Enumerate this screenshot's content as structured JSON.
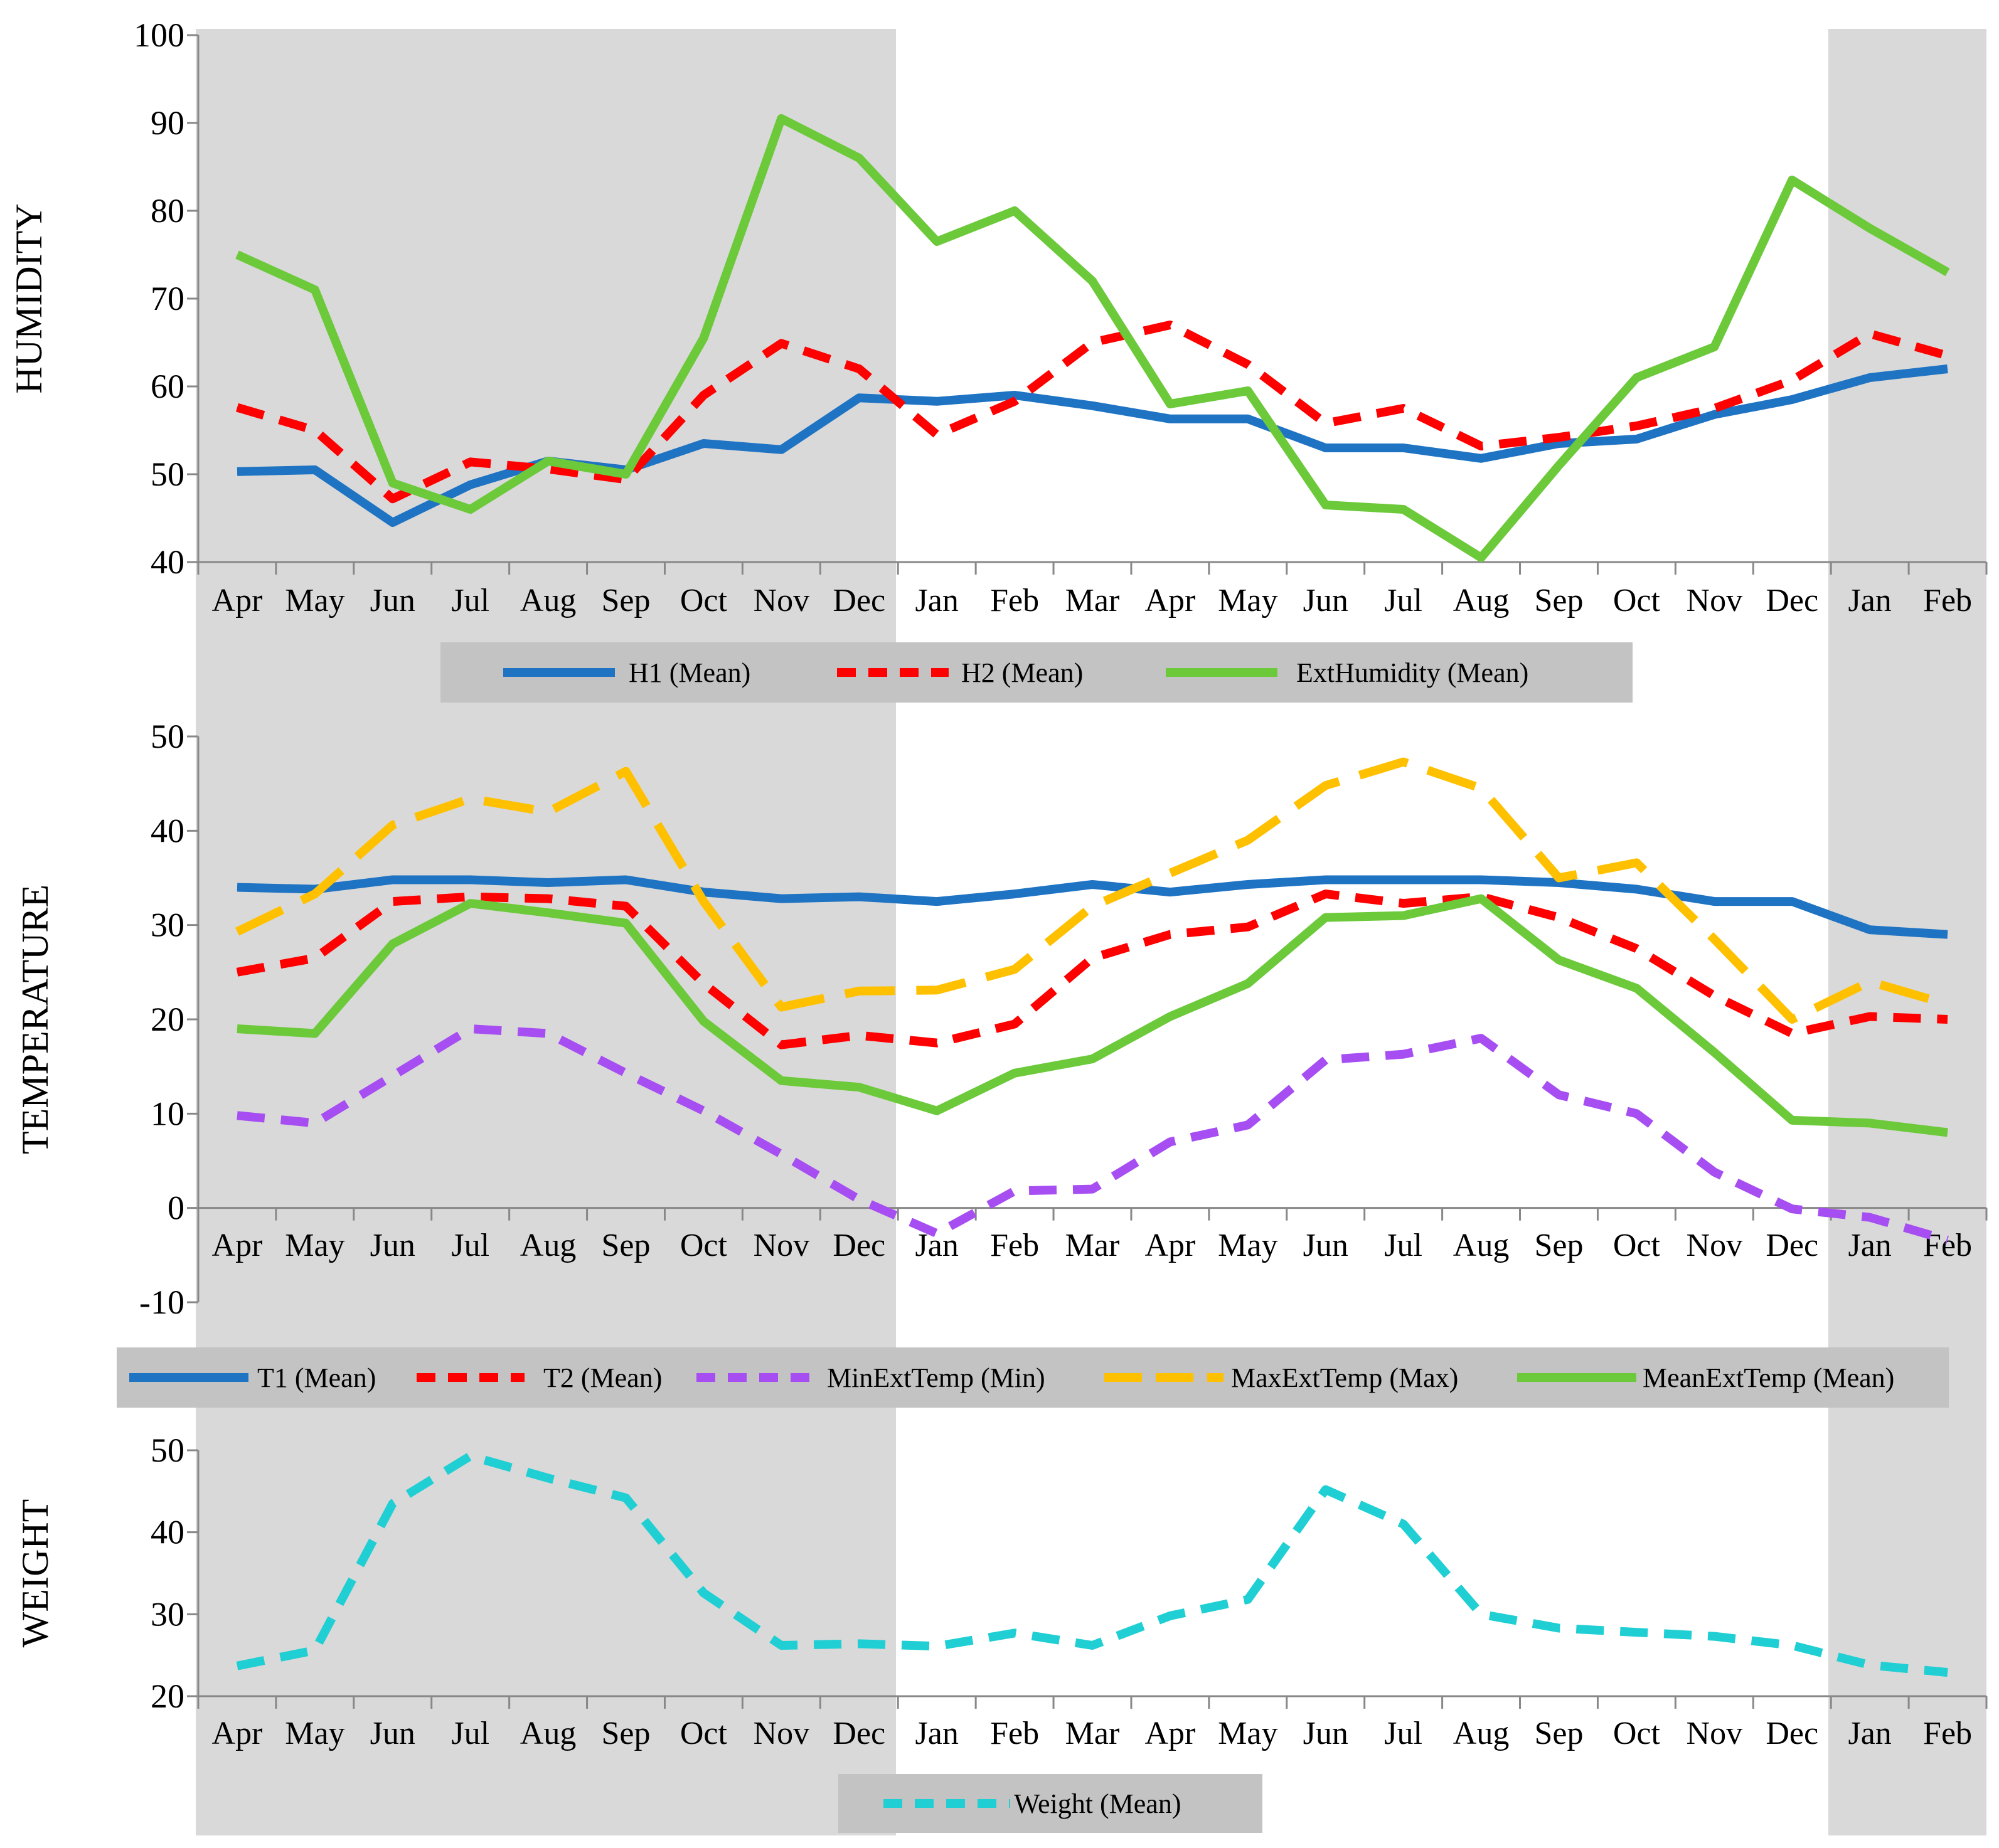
{
  "chart_data": [
    {
      "type": "line",
      "ylabel": "HUMIDITY",
      "ylim": [
        40,
        100
      ],
      "yticks": [
        "100",
        "90",
        "80",
        "70",
        "60",
        "50",
        "40"
      ],
      "categories": [
        "Apr",
        "May",
        "Jun",
        "Jul",
        "Aug",
        "Sep",
        "Oct",
        "Nov",
        "Dec",
        "Jan",
        "Feb",
        "Mar",
        "Apr",
        "May",
        "Jun",
        "Jul",
        "Aug",
        "Sep",
        "Oct",
        "Nov",
        "Dec",
        "Jan",
        "Feb"
      ],
      "series": [
        {
          "name": "H1 (Mean)",
          "color": "#1f73c3",
          "dash": "solid",
          "values": [
            50.3,
            50.5,
            44.5,
            48.8,
            51.5,
            50.5,
            53.5,
            52.8,
            58.7,
            58.3,
            59.0,
            57.8,
            56.3,
            56.3,
            53.0,
            53.0,
            51.8,
            53.5,
            54.0,
            56.8,
            58.5,
            61.0,
            62.0
          ]
        },
        {
          "name": "H2 (Mean)",
          "color": "#ff0000",
          "dash": "dash",
          "values": [
            57.6,
            55.0,
            47.2,
            51.4,
            50.6,
            49.4,
            59.0,
            64.9,
            62.0,
            54.5,
            58.3,
            65.0,
            67.0,
            62.5,
            55.8,
            57.5,
            53.2,
            54.2,
            55.5,
            57.5,
            60.7,
            66.0,
            63.5
          ]
        },
        {
          "name": "ExtHumidity (Mean)",
          "color": "#6cc93a",
          "dash": "solid",
          "values": [
            75.0,
            71.0,
            49.0,
            46.0,
            51.5,
            50.0,
            65.5,
            90.5,
            86.0,
            76.5,
            80.0,
            72.0,
            58.0,
            59.5,
            46.5,
            46.0,
            40.5,
            51.0,
            61.0,
            64.5,
            83.5,
            78.0,
            73.0
          ]
        }
      ]
    },
    {
      "type": "line",
      "ylabel": "TEMPERATURE",
      "ylim": [
        -10,
        50
      ],
      "yticks": [
        "50",
        "40",
        "30",
        "20",
        "10",
        "0",
        "-10"
      ],
      "categories": [
        "Apr",
        "May",
        "Jun",
        "Jul",
        "Aug",
        "Sep",
        "Oct",
        "Nov",
        "Dec",
        "Jan",
        "Feb",
        "Mar",
        "Apr",
        "May",
        "Jun",
        "Jul",
        "Aug",
        "Sep",
        "Oct",
        "Nov",
        "Dec",
        "Jan",
        "Feb"
      ],
      "series": [
        {
          "name": "T1  (Mean)",
          "color": "#1f73c3",
          "dash": "solid",
          "values": [
            34.0,
            33.8,
            34.8,
            34.8,
            34.5,
            34.8,
            33.5,
            32.8,
            33.0,
            32.5,
            33.3,
            34.3,
            33.5,
            34.3,
            34.8,
            34.8,
            34.8,
            34.5,
            33.8,
            32.5,
            32.5,
            29.5,
            29.0
          ]
        },
        {
          "name": "T2  (Mean)",
          "color": "#ff0000",
          "dash": "dash",
          "values": [
            25.0,
            26.5,
            32.5,
            33.0,
            32.8,
            32.0,
            23.8,
            17.3,
            18.3,
            17.5,
            19.5,
            26.5,
            29.0,
            29.8,
            33.3,
            32.3,
            33.0,
            30.8,
            27.5,
            22.5,
            18.5,
            20.3,
            20.0
          ]
        },
        {
          "name": "MinExtTemp (Min)",
          "color": "#a64ef2",
          "dash": "dash",
          "values": [
            9.8,
            9.0,
            14.0,
            19.0,
            18.5,
            14.3,
            10.3,
            5.7,
            0.9,
            -2.7,
            1.8,
            2.0,
            7.0,
            8.8,
            15.7,
            16.3,
            18.0,
            12.0,
            10.0,
            3.8,
            -0.1,
            -1.0,
            -3.4
          ]
        },
        {
          "name": "MaxExtTemp (Max)",
          "color": "#ffc000",
          "dash": "longdash",
          "values": [
            29.3,
            33.3,
            40.6,
            43.4,
            42.0,
            46.3,
            32.5,
            21.3,
            23.0,
            23.1,
            25.3,
            32.0,
            35.5,
            39.0,
            44.8,
            47.3,
            44.5,
            35.0,
            36.6,
            28.5,
            20.0,
            24.0,
            21.6
          ]
        },
        {
          "name": "MeanExtTemp (Mean)",
          "color": "#6cc93a",
          "dash": "solid",
          "values": [
            19.0,
            18.5,
            28.0,
            32.3,
            31.3,
            30.2,
            19.8,
            13.5,
            12.8,
            10.3,
            14.3,
            15.8,
            20.3,
            23.8,
            30.8,
            31.0,
            32.8,
            26.3,
            23.3,
            16.5,
            9.3,
            9.0,
            8.0
          ]
        }
      ]
    },
    {
      "type": "line",
      "ylabel": "WEIGHT",
      "ylim": [
        20,
        50
      ],
      "yticks": [
        "50",
        "40",
        "30",
        "20"
      ],
      "categories": [
        "Apr",
        "May",
        "Jun",
        "Jul",
        "Aug",
        "Sep",
        "Oct",
        "Nov",
        "Dec",
        "Jan",
        "Feb",
        "Mar",
        "Apr",
        "May",
        "Jun",
        "Jul",
        "Aug",
        "Sep",
        "Oct",
        "Nov",
        "Dec",
        "Jan",
        "Feb"
      ],
      "series": [
        {
          "name": "Weight  (Mean)",
          "color": "#1fcfd3",
          "dash": "dash",
          "values": [
            23.7,
            25.6,
            43.5,
            49.3,
            46.6,
            44.2,
            32.6,
            26.2,
            26.4,
            26.1,
            27.7,
            26.2,
            29.8,
            31.8,
            45.2,
            41.0,
            30.0,
            28.3,
            27.8,
            27.3,
            26.2,
            23.8,
            22.9
          ]
        }
      ]
    }
  ]
}
